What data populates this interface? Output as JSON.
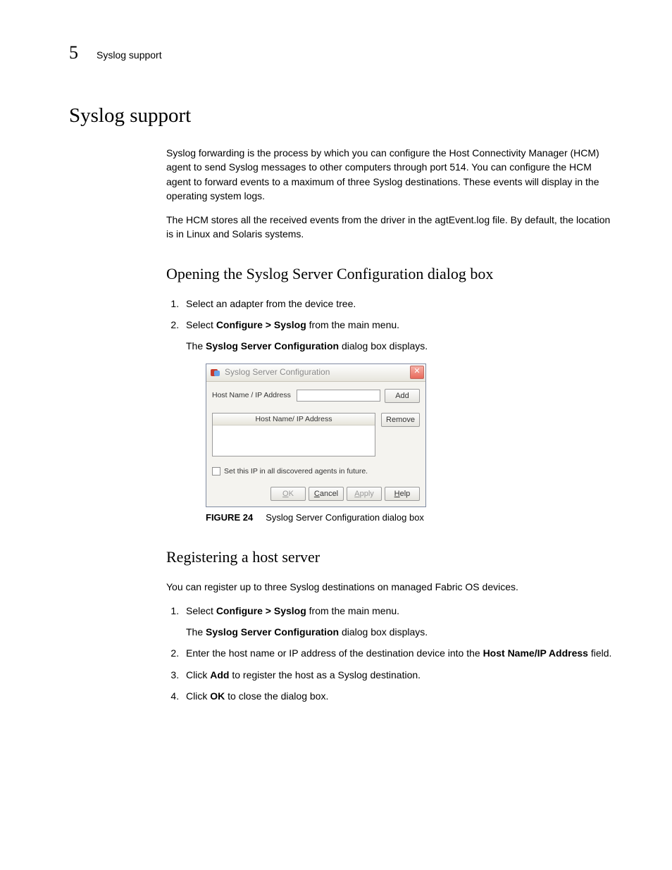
{
  "header": {
    "chapter_number": "5",
    "running_title": "Syslog support"
  },
  "h1": "Syslog support",
  "intro": {
    "p1": "Syslog forwarding is the process by which you can configure the Host Connectivity Manager (HCM) agent to send Syslog messages to other computers through port 514. You can configure the HCM agent to forward events to a maximum of three Syslog destinations. These events will display in the operating system logs.",
    "p2a": "The HCM stores all the received events from the driver in the agtEvent.log file. By default, the location is",
    "p2b": " in Linux and Solaris systems."
  },
  "section_open": {
    "title": "Opening the Syslog Server Configuration dialog box",
    "steps": {
      "s1": "Select an adapter from the device tree.",
      "s2_pre": "Select ",
      "s2_bold": "Configure > Syslog",
      "s2_post": " from the main menu.",
      "s2_sub_pre": "The ",
      "s2_sub_bold": "Syslog Server Configuration",
      "s2_sub_post": " dialog box displays."
    }
  },
  "dialog": {
    "title": "Syslog Server Configuration",
    "label_host": "Host Name / IP Address",
    "col_host": "Host Name/ IP Address",
    "btn_add": "Add",
    "btn_remove": "Remove",
    "chk_label": "Set this IP in all discovered agents in future.",
    "btn_ok_u": "O",
    "btn_ok_rest": "K",
    "btn_cancel_u": "C",
    "btn_cancel_rest": "ancel",
    "btn_apply_u": "A",
    "btn_apply_rest": "pply",
    "btn_help_u": "H",
    "btn_help_rest": "elp",
    "close_glyph": "✕"
  },
  "figcap": {
    "num": "FIGURE 24",
    "text": "Syslog Server Configuration dialog box"
  },
  "section_register": {
    "title": "Registering a host server",
    "intro": "You can register up to three Syslog destinations on managed Fabric OS devices.",
    "steps": {
      "s1_pre": "Select ",
      "s1_bold": "Configure > Syslog",
      "s1_post": " from the main menu.",
      "s1_sub_pre": "The ",
      "s1_sub_bold": "Syslog Server Configuration",
      "s1_sub_post": " dialog box displays.",
      "s2_pre": "Enter the host name or IP address of the destination device into the ",
      "s2_bold": "Host Name/IP Address",
      "s2_post": " field.",
      "s3_pre": "Click ",
      "s3_bold": "Add",
      "s3_post": " to register the host as a Syslog destination.",
      "s4_pre": "Click ",
      "s4_bold": "OK",
      "s4_post": " to close the dialog box."
    }
  },
  "colors": {
    "text": "#000000",
    "bg": "#ffffff"
  }
}
